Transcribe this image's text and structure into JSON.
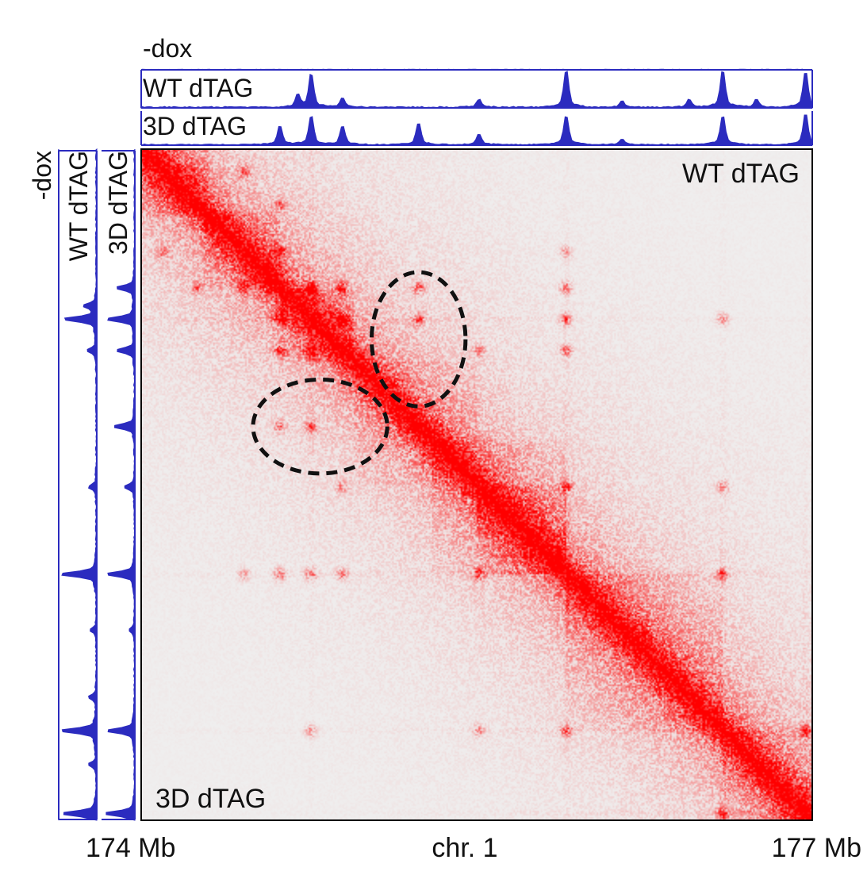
{
  "chart_data": {
    "type": "heatmap",
    "title": "",
    "region": {
      "chromosome_label": "chr. 1",
      "start_label": "174 Mb",
      "end_label": "177 Mb",
      "start_mb": 174,
      "end_mb": 177
    },
    "upper_triangle_label": "WT dTAG",
    "lower_triangle_label": "3D dTAG",
    "colormap": {
      "low": "#efefef",
      "high": "#ff0000"
    },
    "track_color": "#2b2bbf",
    "tracks": [
      {
        "name": "-dox",
        "peaks": []
      },
      {
        "name": "WT dTAG",
        "peaks": [
          {
            "pos_mb": 174.7,
            "value": 0.3
          },
          {
            "pos_mb": 174.76,
            "value": 0.85
          },
          {
            "pos_mb": 174.9,
            "value": 0.25
          },
          {
            "pos_mb": 175.51,
            "value": 0.2
          },
          {
            "pos_mb": 175.9,
            "value": 0.95
          },
          {
            "pos_mb": 176.15,
            "value": 0.15
          },
          {
            "pos_mb": 176.45,
            "value": 0.2
          },
          {
            "pos_mb": 176.6,
            "value": 0.95
          },
          {
            "pos_mb": 176.75,
            "value": 0.2
          },
          {
            "pos_mb": 176.97,
            "value": 0.9
          }
        ]
      },
      {
        "name": "3D dTAG",
        "peaks": [
          {
            "pos_mb": 174.62,
            "value": 0.55
          },
          {
            "pos_mb": 174.76,
            "value": 0.85
          },
          {
            "pos_mb": 174.9,
            "value": 0.55
          },
          {
            "pos_mb": 175.24,
            "value": 0.65
          },
          {
            "pos_mb": 175.51,
            "value": 0.3
          },
          {
            "pos_mb": 175.9,
            "value": 0.85
          },
          {
            "pos_mb": 176.15,
            "value": 0.15
          },
          {
            "pos_mb": 176.6,
            "value": 0.85
          },
          {
            "pos_mb": 176.97,
            "value": 0.9
          }
        ]
      }
    ],
    "domains": [
      {
        "start_mb": 174.0,
        "end_mb": 174.3,
        "strength": 0.55
      },
      {
        "start_mb": 174.28,
        "end_mb": 174.62,
        "strength": 0.45
      },
      {
        "start_mb": 174.62,
        "end_mb": 174.95,
        "strength": 0.5
      },
      {
        "start_mb": 174.95,
        "end_mb": 175.5,
        "strength": 0.25
      },
      {
        "start_mb": 175.3,
        "end_mb": 175.9,
        "strength": 0.3
      },
      {
        "start_mb": 175.5,
        "end_mb": 175.9,
        "strength": 0.4
      },
      {
        "start_mb": 175.9,
        "end_mb": 176.6,
        "strength": 0.35
      },
      {
        "start_mb": 176.6,
        "end_mb": 177.0,
        "strength": 0.35
      }
    ],
    "loops": [
      {
        "a_mb": 174.62,
        "b_mb": 174.76,
        "strength": 0.65
      },
      {
        "a_mb": 174.76,
        "b_mb": 174.9,
        "strength": 0.55
      },
      {
        "a_mb": 174.62,
        "b_mb": 174.9,
        "strength": 0.55
      },
      {
        "a_mb": 174.46,
        "b_mb": 174.62,
        "strength": 0.45
      },
      {
        "a_mb": 174.25,
        "b_mb": 174.62,
        "strength": 0.35
      },
      {
        "a_mb": 174.62,
        "b_mb": 175.24,
        "strength": 0.45
      },
      {
        "a_mb": 174.76,
        "b_mb": 175.24,
        "strength": 0.45
      },
      {
        "a_mb": 174.62,
        "b_mb": 175.9,
        "strength": 0.45
      },
      {
        "a_mb": 174.76,
        "b_mb": 175.9,
        "strength": 0.5
      },
      {
        "a_mb": 174.9,
        "b_mb": 175.9,
        "strength": 0.45
      },
      {
        "a_mb": 175.51,
        "b_mb": 175.9,
        "strength": 0.55
      },
      {
        "a_mb": 174.9,
        "b_mb": 175.51,
        "strength": 0.35
      },
      {
        "a_mb": 175.9,
        "b_mb": 176.6,
        "strength": 0.5
      },
      {
        "a_mb": 174.76,
        "b_mb": 176.6,
        "strength": 0.35
      },
      {
        "a_mb": 175.51,
        "b_mb": 176.6,
        "strength": 0.35
      },
      {
        "a_mb": 176.6,
        "b_mb": 176.97,
        "strength": 0.55
      },
      {
        "a_mb": 174.1,
        "b_mb": 174.46,
        "strength": 0.35
      },
      {
        "a_mb": 174.46,
        "b_mb": 175.9,
        "strength": 0.3
      }
    ],
    "highlights": [
      {
        "triangle": "upper",
        "x_mb": 175.24,
        "y_mb": 174.85,
        "rx_mb": 0.21,
        "ry_mb": 0.3,
        "style": "dashed-ellipse"
      },
      {
        "triangle": "lower",
        "x_mb": 174.8,
        "y_mb": 175.24,
        "rx_mb": 0.3,
        "ry_mb": 0.21,
        "style": "dashed-ellipse"
      }
    ]
  }
}
